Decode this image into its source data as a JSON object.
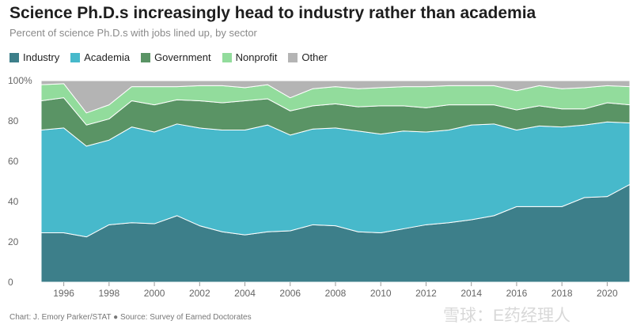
{
  "header": {
    "title": "Science Ph.D.s increasingly head to industry rather than academia",
    "subtitle": "Percent of science Ph.D.s with jobs lined up, by sector"
  },
  "legend": [
    {
      "label": "Industry",
      "color": "#3d7f8a"
    },
    {
      "label": "Academia",
      "color": "#47b9cb"
    },
    {
      "label": "Government",
      "color": "#5a9465"
    },
    {
      "label": "Nonprofit",
      "color": "#92dc9c"
    },
    {
      "label": "Other",
      "color": "#b4b4b4"
    }
  ],
  "footer": {
    "credit": "Chart: J. Emory Parker/STAT ● Source: Survey of Earned Doctorates"
  },
  "watermark": "雪球：E药经理人",
  "chart_data": {
    "type": "area",
    "stacked": true,
    "x": [
      1995,
      1996,
      1997,
      1998,
      1999,
      2000,
      2001,
      2002,
      2003,
      2004,
      2005,
      2006,
      2007,
      2008,
      2009,
      2010,
      2011,
      2012,
      2013,
      2014,
      2015,
      2016,
      2017,
      2018,
      2019,
      2020,
      2021
    ],
    "series": [
      {
        "name": "Industry",
        "color": "#3d7f8a",
        "values": [
          24.5,
          24.5,
          22.5,
          28.5,
          29.5,
          29,
          33,
          28,
          25,
          23.5,
          25,
          25.5,
          28.5,
          28,
          25,
          24.5,
          26.5,
          28.5,
          29.5,
          31,
          33,
          37.5,
          37.5,
          37.5,
          42,
          42.5,
          48.5
        ]
      },
      {
        "name": "Academia",
        "color": "#47b9cb",
        "values": [
          51,
          52,
          45,
          42,
          47.5,
          45.5,
          45.5,
          48.5,
          50.5,
          52,
          53,
          47.5,
          47.5,
          48.5,
          50,
          49,
          48.5,
          46,
          46,
          47,
          45.5,
          38,
          40,
          39.5,
          36,
          37,
          30.5
        ]
      },
      {
        "name": "Government",
        "color": "#5a9465",
        "values": [
          14.5,
          15,
          10.5,
          10.5,
          13,
          13.5,
          12,
          13.5,
          13.5,
          14.5,
          13,
          12,
          11.5,
          12,
          12,
          14,
          12.5,
          12,
          12.5,
          10,
          9.5,
          10,
          10,
          9,
          8,
          9.5,
          9
        ]
      },
      {
        "name": "Nonprofit",
        "color": "#92dc9c",
        "values": [
          8,
          7,
          6,
          7,
          7,
          9,
          6.5,
          7.5,
          8.5,
          6.5,
          7,
          6.5,
          8.5,
          8.5,
          9,
          9,
          9.5,
          10.5,
          9.5,
          9.5,
          9.5,
          9.5,
          10,
          10,
          10.5,
          8.5,
          9
        ]
      },
      {
        "name": "Other",
        "color": "#b4b4b4",
        "values": [
          2,
          1.5,
          16,
          12,
          3,
          3,
          3,
          2.5,
          2.5,
          3.5,
          2,
          8.5,
          4,
          3,
          4,
          3.5,
          3,
          3,
          2.5,
          2.5,
          2.5,
          5,
          2.5,
          4,
          3.5,
          2.5,
          3
        ]
      }
    ],
    "x_ticks": [
      1996,
      1998,
      2000,
      2002,
      2004,
      2006,
      2008,
      2010,
      2012,
      2014,
      2016,
      2018,
      2020
    ],
    "y_ticks": [
      0,
      20,
      40,
      60,
      80,
      100
    ],
    "y_tick_labels": [
      "0",
      "20",
      "40",
      "60",
      "80",
      "100%"
    ],
    "xlim": [
      1995,
      2021
    ],
    "ylim": [
      0,
      100
    ],
    "grid": false,
    "legend_position": "top-left"
  }
}
